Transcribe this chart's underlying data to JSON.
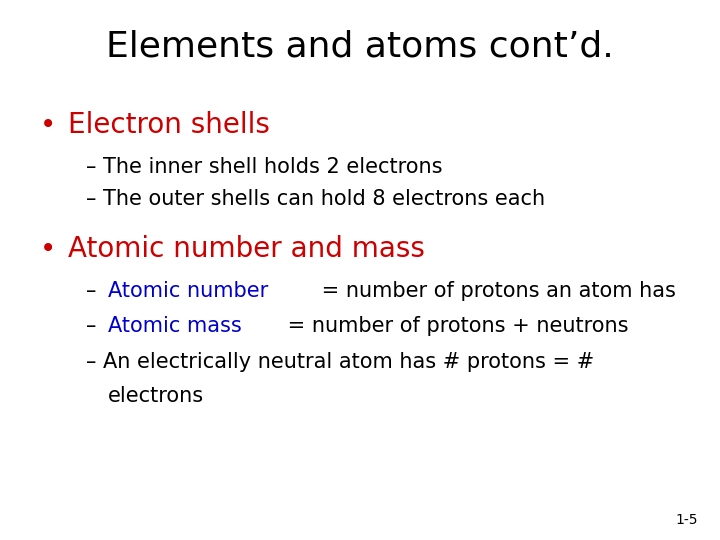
{
  "title": "Elements and atoms cont’d.",
  "title_fontsize": 26,
  "title_color": "#000000",
  "background_color": "#ffffff",
  "bullet1": "Electron shells",
  "bullet1_color": "#cc0000",
  "bullet1_fontsize": 20,
  "sub1a": "The inner shell holds 2 electrons",
  "sub1b": "The outer shells can hold 8 electrons each",
  "sub_color": "#000000",
  "sub_fontsize": 15,
  "bullet2": "Atomic number and mass",
  "bullet2_color": "#cc0000",
  "bullet2_fontsize": 20,
  "sub2a_blue": "Atomic number",
  "sub2a_black": " = number of protons an atom has",
  "sub2b_blue": "Atomic mass",
  "sub2b_black": " = number of protons + neutrons",
  "sub2c_line1": "An electrically neutral atom has # protons = #",
  "sub2c_line2": "electrons",
  "sub2c_color": "#000000",
  "blue_color": "#0000cc",
  "page_num": "1-5",
  "page_num_color": "#000000",
  "page_num_fontsize": 10
}
